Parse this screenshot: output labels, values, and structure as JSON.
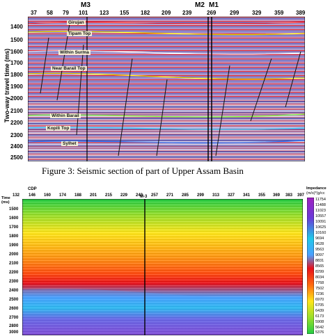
{
  "figure3": {
    "caption": "Figure 3: Seismic section of part of Upper Assam Basin",
    "y_axis_label": "Two-way travel time (ms)",
    "traces": [
      "37",
      "58",
      "79",
      "101",
      "123",
      "155",
      "182",
      "209",
      "239",
      "269",
      "299",
      "329",
      "359",
      "389"
    ],
    "times": [
      "1400",
      "1500",
      "1600",
      "1700",
      "1800",
      "1900",
      "2000",
      "2100",
      "2200",
      "2300",
      "2400",
      "2500"
    ],
    "wells": [
      "M3",
      "M2",
      "M1"
    ],
    "horizons": [
      {
        "label": "Girujan",
        "color": "#ff3c3c"
      },
      {
        "label": "Tipam Top",
        "color": "#ffe600"
      },
      {
        "label": "Within Surma",
        "color": "#ffffff"
      },
      {
        "label": "Near Barail Top",
        "color": "#ffe600"
      },
      {
        "label": "Within Barail",
        "color": "#7fff3a"
      },
      {
        "label": "Kopili Top",
        "color": "#3ad0ff"
      },
      {
        "label": "Sylhet",
        "color": "#2a7aff"
      }
    ]
  },
  "figure_lower": {
    "cdp_label": "CDP",
    "cdps": [
      "132",
      "146",
      "160",
      "174",
      "188",
      "201",
      "215",
      "229",
      "243",
      "257",
      "271",
      "285",
      "299",
      "313",
      "327",
      "341",
      "355",
      "369",
      "383",
      "397",
      "411",
      "425",
      "439"
    ],
    "time_label": "Time (ms)",
    "times": [
      "1500",
      "1600",
      "1700",
      "1800",
      "1900",
      "2000",
      "2100",
      "2200",
      "2300",
      "2400",
      "2500",
      "2600",
      "2700",
      "2800",
      "2900",
      "3000"
    ],
    "well_label": "M-3",
    "colorbar_title": "Impedance",
    "colorbar_unit": "(m/s)*(g/cc",
    "colorbar_values": [
      "11754",
      "11488",
      "11023",
      "10557",
      "10091",
      "10625",
      "10160",
      "9694",
      "9628",
      "9563",
      "9097",
      "8831",
      "8565",
      "8299",
      "8034",
      "7768",
      "7502",
      "7236",
      "6970",
      "6705",
      "6439",
      "6173",
      "5908",
      "5642",
      "5376"
    ]
  }
}
